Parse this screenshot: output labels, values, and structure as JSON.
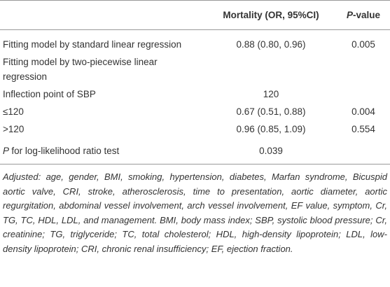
{
  "table": {
    "header": [
      "Mortality (OR, 95%CI)",
      {
        "italic": "P",
        "text": "-value"
      }
    ],
    "rows": [
      [
        "Fitting model by standard linear regression",
        "0.88 (0.80, 0.96)",
        "0.005"
      ],
      [
        "Fitting model by two-piecewise linear regression"
      ],
      [
        "Inflection point of SBP",
        "120"
      ],
      [
        "≤120",
        "0.67 (0.51, 0.88)",
        "0.004"
      ],
      [
        ">120",
        "0.96 (0.85, 1.09)",
        "0.554"
      ],
      [
        {
          "italic": "P",
          "text": "for log-likelihood ratio test"
        },
        "0.039"
      ]
    ]
  },
  "footnote": "Adjusted: age, gender, BMI, smoking, hypertension, diabetes, Marfan syndrome, Bicuspid aortic valve, CRI, stroke, atherosclerosis, time to presentation, aortic diameter, aortic regurgitation, abdominal vessel involvement, arch vessel involvement, EF value, symptom, Cr, TG, TC, HDL, LDL, and management. BMI, body mass index; SBP, systolic blood pressure; Cr, creatinine; TG, triglyceride; TC, total cholesterol; HDL, high-density lipoprotein; LDL, low-density lipoprotein; CRI, chronic renal insufficiency; EF, ejection fraction."
}
